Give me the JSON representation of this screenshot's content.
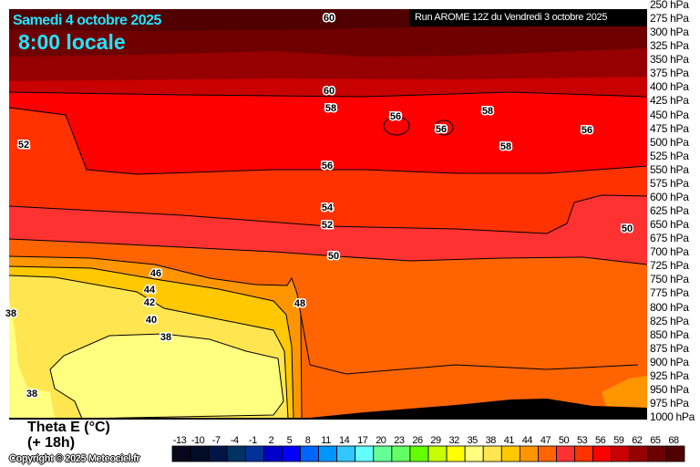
{
  "header": {
    "date": "Samedi 4 octobre 2025",
    "time": "8:00 locale",
    "run": "Run AROME 12Z du Vendredi 3 octobre 2025"
  },
  "footer": {
    "variable": "Theta E (°C)",
    "lead": "(+ 18h)",
    "copyright": "Copyright © 2025 Meteociel.fr"
  },
  "chart_data": {
    "type": "heatmap",
    "title": "Theta E (°C)",
    "ylabel": "",
    "y_axis_levels": [
      "250 hPa",
      "275 hPa",
      "300 hPa",
      "325 hPa",
      "350 hPa",
      "375 hPa",
      "400 hPa",
      "425 hPa",
      "450 hPa",
      "475 hPa",
      "500 hPa",
      "525 hPa",
      "550 hPa",
      "575 hPa",
      "600 hPa",
      "625 hPa",
      "650 hPa",
      "675 hPa",
      "700 hPa",
      "725 hPa",
      "750 hPa",
      "775 hPa",
      "800 hPa",
      "825 hPa",
      "850 hPa",
      "875 hPa",
      "900 hPa",
      "925 hPa",
      "950 hPa",
      "975 hPa",
      "1000 hPa"
    ],
    "ylim_hPa": [
      250,
      1000
    ],
    "y_scale": "inverted pressure",
    "colorbar": {
      "ticks": [
        "-13",
        "-10",
        "-7",
        "-4",
        "-1",
        "2",
        "5",
        "8",
        "11",
        "14",
        "17",
        "20",
        "23",
        "26",
        "29",
        "32",
        "35",
        "38",
        "41",
        "44",
        "47",
        "50",
        "53",
        "56",
        "59",
        "62",
        "65",
        "68"
      ],
      "colors": [
        "#06061c",
        "#000c28",
        "#001446",
        "#003264",
        "#00329a",
        "#0000c8",
        "#0000ff",
        "#0064ff",
        "#0096ff",
        "#32c8ff",
        "#64ffff",
        "#64ff96",
        "#64ff64",
        "#64ff00",
        "#c8ff00",
        "#ffff00",
        "#ffff80",
        "#ffe650",
        "#ffc800",
        "#ff9600",
        "#ff6400",
        "#ff3232",
        "#ff3200",
        "#ff0000",
        "#c80000",
        "#960000",
        "#6e0000",
        "#500000"
      ]
    },
    "contour_labels": [
      "60",
      "60",
      "58",
      "56",
      "58",
      "56",
      "56",
      "58",
      "52",
      "56",
      "54",
      "52",
      "50",
      "50",
      "46",
      "44",
      "42",
      "40",
      "38",
      "48",
      "38",
      "38"
    ],
    "terrain_color": "#000000"
  }
}
